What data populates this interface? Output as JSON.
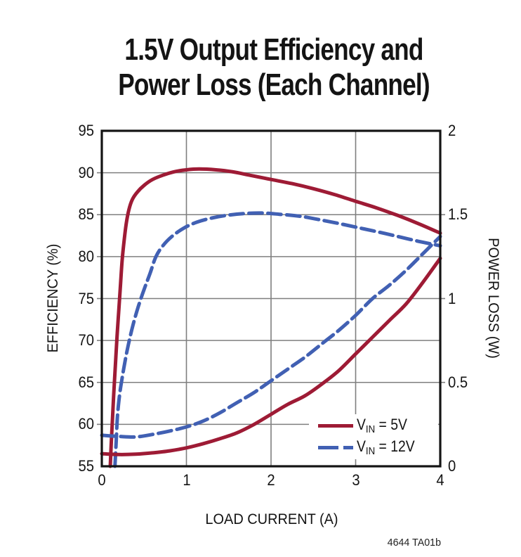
{
  "title": {
    "line1": "1.5V Output Efficiency and",
    "line2": "Power Loss (Each Channel)"
  },
  "footer": {
    "code": "4644 TA01b"
  },
  "chart_data": {
    "type": "line",
    "title": "1.5V Output Efficiency and Power Loss (Each Channel)",
    "xlabel": "LOAD CURRENT (A)",
    "ylabel_left": "EFFICIENCY (%)",
    "ylabel_right": "POWER LOSS (W)",
    "x_range": [
      0,
      4
    ],
    "y_left_range": [
      55,
      95
    ],
    "y_right_range": [
      0,
      2
    ],
    "grid": true,
    "x_ticks": [
      {
        "value": 0,
        "label": "0"
      },
      {
        "value": 1,
        "label": "1"
      },
      {
        "value": 2,
        "label": "2"
      },
      {
        "value": 3,
        "label": "3"
      },
      {
        "value": 4,
        "label": "4"
      }
    ],
    "y_left_ticks": [
      {
        "value": 55,
        "label": "55"
      },
      {
        "value": 60,
        "label": "60"
      },
      {
        "value": 65,
        "label": "65"
      },
      {
        "value": 70,
        "label": "70"
      },
      {
        "value": 75,
        "label": "75"
      },
      {
        "value": 80,
        "label": "80"
      },
      {
        "value": 85,
        "label": "85"
      },
      {
        "value": 90,
        "label": "90"
      },
      {
        "value": 95,
        "label": "95"
      }
    ],
    "y_right_ticks": [
      {
        "value": 0,
        "label": "0"
      },
      {
        "value": 0.5,
        "label": "0.5"
      },
      {
        "value": 1,
        "label": "1"
      },
      {
        "value": 1.5,
        "label": "1.5"
      },
      {
        "value": 2,
        "label": "2"
      }
    ],
    "colors": {
      "vin5": "#9E1B35",
      "vin12": "#4160B3",
      "grid": "#7F7F7F",
      "axis": "#141414"
    },
    "legend": {
      "position": "bottom-right-inside",
      "items": [
        {
          "prefix": "V",
          "sub": "IN",
          "rest": " = 5V",
          "color": "#9E1B35",
          "style": "solid"
        },
        {
          "prefix": "V",
          "sub": "IN",
          "rest": " = 12V",
          "color": "#4160B3",
          "style": "dashed"
        }
      ]
    },
    "series": [
      {
        "name": "Efficiency, VIN = 5V",
        "axis": "left",
        "color": "#9E1B35",
        "style": "solid",
        "points": [
          [
            0.1,
            55
          ],
          [
            0.11,
            57.5
          ],
          [
            0.125,
            60.5
          ],
          [
            0.14,
            63.5
          ],
          [
            0.16,
            67
          ],
          [
            0.18,
            70.5
          ],
          [
            0.2,
            73.5
          ],
          [
            0.22,
            76.5
          ],
          [
            0.24,
            79.5
          ],
          [
            0.265,
            82
          ],
          [
            0.29,
            84
          ],
          [
            0.32,
            85.6
          ],
          [
            0.36,
            86.8
          ],
          [
            0.42,
            87.7
          ],
          [
            0.5,
            88.5
          ],
          [
            0.6,
            89.2
          ],
          [
            0.72,
            89.7
          ],
          [
            0.85,
            90.1
          ],
          [
            1.0,
            90.35
          ],
          [
            1.15,
            90.45
          ],
          [
            1.35,
            90.35
          ],
          [
            1.55,
            90.1
          ],
          [
            1.75,
            89.7
          ],
          [
            2.0,
            89.2
          ],
          [
            2.25,
            88.7
          ],
          [
            2.5,
            88.1
          ],
          [
            2.75,
            87.4
          ],
          [
            3.0,
            86.6
          ],
          [
            3.25,
            85.8
          ],
          [
            3.5,
            84.9
          ],
          [
            3.75,
            83.9
          ],
          [
            4.0,
            82.8
          ]
        ]
      },
      {
        "name": "Efficiency, VIN = 12V",
        "axis": "left",
        "color": "#4160B3",
        "style": "dashed",
        "points": [
          [
            0.155,
            55
          ],
          [
            0.17,
            58
          ],
          [
            0.185,
            61
          ],
          [
            0.21,
            63.5
          ],
          [
            0.24,
            65.5
          ],
          [
            0.28,
            67.8
          ],
          [
            0.32,
            69.8
          ],
          [
            0.37,
            71.9
          ],
          [
            0.43,
            74
          ],
          [
            0.5,
            76.1
          ],
          [
            0.57,
            78
          ],
          [
            0.64,
            80
          ],
          [
            0.73,
            81.4
          ],
          [
            0.84,
            82.5
          ],
          [
            0.97,
            83.4
          ],
          [
            1.12,
            84.1
          ],
          [
            1.3,
            84.6
          ],
          [
            1.5,
            84.95
          ],
          [
            1.7,
            85.15
          ],
          [
            1.9,
            85.2
          ],
          [
            2.1,
            85.05
          ],
          [
            2.35,
            84.8
          ],
          [
            2.6,
            84.35
          ],
          [
            2.85,
            83.85
          ],
          [
            3.1,
            83.3
          ],
          [
            3.35,
            82.75
          ],
          [
            3.6,
            82.15
          ],
          [
            3.8,
            81.7
          ],
          [
            4.0,
            81.3
          ]
        ]
      },
      {
        "name": "Power Loss, VIN = 5V",
        "axis": "right",
        "color": "#9E1B35",
        "style": "solid",
        "points": [
          [
            0,
            0.075
          ],
          [
            0.2,
            0.07
          ],
          [
            0.4,
            0.072
          ],
          [
            0.6,
            0.08
          ],
          [
            0.8,
            0.092
          ],
          [
            1.0,
            0.11
          ],
          [
            1.2,
            0.135
          ],
          [
            1.4,
            0.165
          ],
          [
            1.6,
            0.2
          ],
          [
            1.8,
            0.25
          ],
          [
            2.0,
            0.31
          ],
          [
            2.2,
            0.37
          ],
          [
            2.4,
            0.42
          ],
          [
            2.6,
            0.49
          ],
          [
            2.8,
            0.57
          ],
          [
            3.0,
            0.67
          ],
          [
            3.2,
            0.77
          ],
          [
            3.4,
            0.87
          ],
          [
            3.6,
            0.97
          ],
          [
            3.8,
            1.1
          ],
          [
            4.0,
            1.24
          ]
        ]
      },
      {
        "name": "Power Loss, VIN = 12V",
        "axis": "right",
        "color": "#4160B3",
        "style": "dashed",
        "points": [
          [
            0,
            0.185
          ],
          [
            0.2,
            0.178
          ],
          [
            0.4,
            0.175
          ],
          [
            0.6,
            0.19
          ],
          [
            0.8,
            0.21
          ],
          [
            1.0,
            0.235
          ],
          [
            1.2,
            0.27
          ],
          [
            1.4,
            0.32
          ],
          [
            1.6,
            0.38
          ],
          [
            1.8,
            0.44
          ],
          [
            2.0,
            0.51
          ],
          [
            2.2,
            0.58
          ],
          [
            2.4,
            0.65
          ],
          [
            2.6,
            0.73
          ],
          [
            2.8,
            0.81
          ],
          [
            3.0,
            0.9
          ],
          [
            3.2,
            1.0
          ],
          [
            3.4,
            1.08
          ],
          [
            3.6,
            1.17
          ],
          [
            3.8,
            1.27
          ],
          [
            4.0,
            1.37
          ]
        ]
      }
    ]
  }
}
